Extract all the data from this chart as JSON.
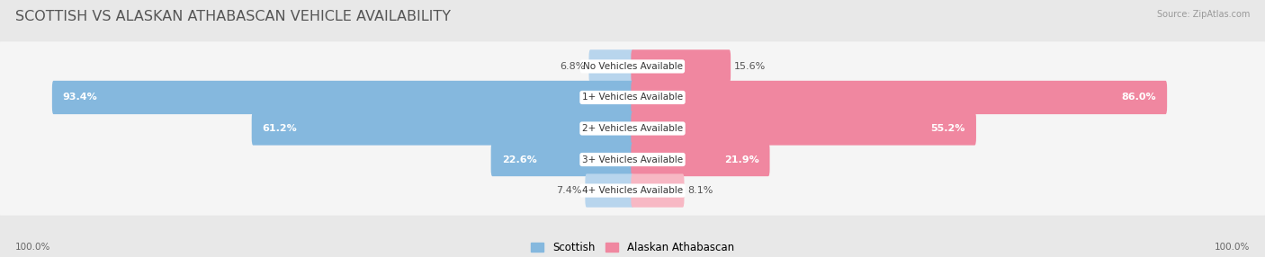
{
  "title": "SCOTTISH VS ALASKAN ATHABASCAN VEHICLE AVAILABILITY",
  "source": "Source: ZipAtlas.com",
  "categories": [
    "No Vehicles Available",
    "1+ Vehicles Available",
    "2+ Vehicles Available",
    "3+ Vehicles Available",
    "4+ Vehicles Available"
  ],
  "scottish": [
    6.8,
    93.4,
    61.2,
    22.6,
    7.4
  ],
  "alaskan": [
    15.6,
    86.0,
    55.2,
    21.9,
    8.1
  ],
  "scottish_color": "#85b8de",
  "alaskan_color": "#f087a0",
  "scottish_light_color": "#b8d5ed",
  "alaskan_light_color": "#f7b8c4",
  "scottish_label": "Scottish",
  "alaskan_label": "Alaskan Athabascan",
  "bar_height": 0.6,
  "background_color": "#e8e8e8",
  "row_color_light": "#f5f5f5",
  "row_color_dark": "#ebebeb",
  "max_val": 100.0,
  "title_fontsize": 11.5,
  "label_fontsize": 8.0,
  "cat_fontsize": 7.5,
  "footer_label": "100.0%",
  "title_color": "#555555"
}
